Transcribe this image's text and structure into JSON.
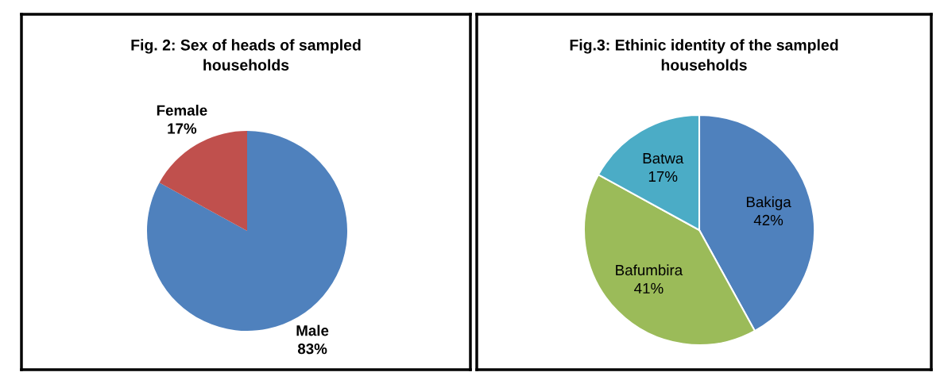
{
  "chart_data": [
    {
      "type": "pie",
      "title": "Fig. 2: Sex of heads of sampled households",
      "categories": [
        "Male",
        "Female"
      ],
      "values": [
        83,
        17
      ],
      "value_labels": [
        "83%",
        "17%"
      ],
      "colors": [
        "#4f81bd",
        "#c0504d"
      ],
      "legend": false
    },
    {
      "type": "pie",
      "title": "Fig.3: Ethinic identity of the sampled households",
      "categories": [
        "Bakiga",
        "Bafumbira",
        "Batwa"
      ],
      "values": [
        42,
        41,
        17
      ],
      "value_labels": [
        "42%",
        "41%",
        "17%"
      ],
      "colors": [
        "#4f81bd",
        "#9bbb59",
        "#4bacc6"
      ],
      "legend": false
    }
  ]
}
